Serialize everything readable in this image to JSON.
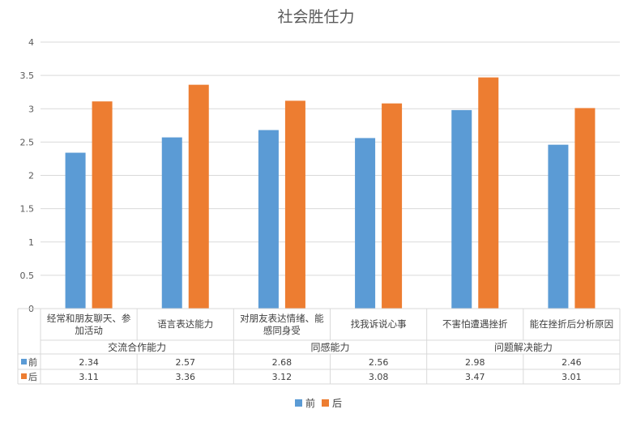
{
  "chart_data": {
    "type": "bar",
    "title": "社会胜任力",
    "ylim": [
      0,
      4
    ],
    "yticks": [
      "0",
      "0.5",
      "1",
      "1.5",
      "2",
      "2.5",
      "3",
      "3.5",
      "4"
    ],
    "grid": true,
    "legend_position": "bottom",
    "categories": [
      {
        "lines": [
          "经常和朋友聊天、参",
          "加活动"
        ]
      },
      {
        "lines": [
          "语言表达能力"
        ]
      },
      {
        "lines": [
          "对朋友表达情绪、能",
          "感同身受"
        ]
      },
      {
        "lines": [
          "找我诉说心事"
        ]
      },
      {
        "lines": [
          "不害怕遭遇挫折"
        ]
      },
      {
        "lines": [
          "能在挫折后分析原因"
        ]
      }
    ],
    "groups": [
      {
        "label": "交流合作能力",
        "span": 2
      },
      {
        "label": "同感能力",
        "span": 2
      },
      {
        "label": "问题解决能力",
        "span": 2
      }
    ],
    "series": [
      {
        "name": "前",
        "color": "#5b9bd5",
        "values": [
          2.34,
          2.57,
          2.68,
          2.56,
          2.98,
          2.46
        ],
        "labels": [
          "2.34",
          "2.57",
          "2.68",
          "2.56",
          "2.98",
          "2.46"
        ]
      },
      {
        "name": "后",
        "color": "#ed7d31",
        "values": [
          3.11,
          3.36,
          3.12,
          3.08,
          3.47,
          3.01
        ],
        "labels": [
          "3.11",
          "3.36",
          "3.12",
          "3.08",
          "3.47",
          "3.01"
        ]
      }
    ]
  }
}
